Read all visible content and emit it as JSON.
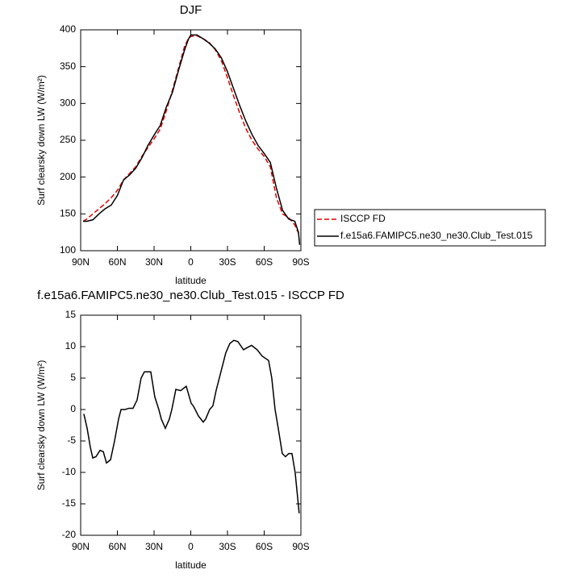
{
  "chart_data": [
    {
      "type": "line",
      "title": "DJF",
      "xlabel": "latitude",
      "ylabel": "Surf clearsky down LW (W/m²)",
      "xlim": [
        90,
        -90
      ],
      "ylim": [
        100,
        400
      ],
      "xticks": [
        {
          "value": 90,
          "label": "90N"
        },
        {
          "value": 60,
          "label": "60N"
        },
        {
          "value": 30,
          "label": "30N"
        },
        0,
        {
          "value": -30,
          "label": "30S"
        },
        {
          "value": -60,
          "label": "60S"
        },
        {
          "value": -90,
          "label": "90S"
        }
      ],
      "yticks": [
        100,
        150,
        200,
        250,
        300,
        350,
        400
      ],
      "legend": "right",
      "series": [
        {
          "name": "ISCCP FD",
          "color": "#e00000",
          "dash": "dashed",
          "x": [
            88,
            85,
            80,
            75,
            70,
            65,
            60,
            55,
            50,
            45,
            40,
            35,
            30,
            25,
            20,
            15,
            10,
            5,
            2,
            0,
            -5,
            -10,
            -15,
            -20,
            -25,
            -30,
            -35,
            -40,
            -45,
            -50,
            -55,
            -60,
            -65,
            -70,
            -75,
            -80,
            -85,
            -88
          ],
          "values": [
            140,
            143,
            150,
            157,
            164,
            172,
            182,
            196,
            205,
            214,
            228,
            240,
            252,
            265,
            290,
            318,
            348,
            378,
            388,
            391,
            392,
            388,
            383,
            373,
            358,
            335,
            310,
            287,
            266,
            250,
            238,
            228,
            214,
            172,
            150,
            145,
            135,
            124
          ]
        },
        {
          "name": "f.e15a6.FAMIPC5.ne30_ne30.Club_Test.015",
          "color": "#000000",
          "dash": "solid",
          "x": [
            88,
            85,
            80,
            75,
            70,
            65,
            60,
            55,
            50,
            45,
            40,
            35,
            30,
            25,
            20,
            15,
            10,
            5,
            2,
            0,
            -5,
            -10,
            -15,
            -20,
            -25,
            -30,
            -35,
            -40,
            -45,
            -50,
            -55,
            -60,
            -65,
            -70,
            -75,
            -80,
            -85,
            -88,
            -89
          ],
          "values": [
            140,
            140,
            142,
            150,
            157,
            162,
            175,
            196,
            203,
            212,
            226,
            243,
            257,
            270,
            295,
            315,
            345,
            373,
            387,
            393,
            393,
            388,
            382,
            374,
            362,
            343,
            320,
            297,
            276,
            258,
            243,
            232,
            220,
            185,
            155,
            143,
            140,
            125,
            108
          ]
        }
      ]
    },
    {
      "type": "line",
      "title": "f.e15a6.FAMIPC5.ne30_ne30.Club_Test.015 - ISCCP FD",
      "xlabel": "latitude",
      "ylabel": "Surf clearsky down LW (W/m²)",
      "xlim": [
        90,
        -90
      ],
      "ylim": [
        -20,
        15
      ],
      "xticks": [
        {
          "value": 90,
          "label": "90N"
        },
        {
          "value": 60,
          "label": "60N"
        },
        {
          "value": 30,
          "label": "30N"
        },
        0,
        {
          "value": -30,
          "label": "30S"
        },
        {
          "value": -60,
          "label": "60S"
        },
        {
          "value": -90,
          "label": "90S"
        }
      ],
      "yticks": [
        -20,
        -15,
        -10,
        -5,
        0,
        5,
        10,
        15
      ],
      "series": [
        {
          "color": "#000000",
          "dash": "solid",
          "x": [
            87.4,
            84.7,
            82.1,
            80.1,
            77.5,
            74.2,
            71.5,
            68.9,
            65.6,
            62.3,
            59.0,
            57.0,
            53.7,
            50.5,
            47.2,
            43.9,
            40.6,
            37.9,
            32.7,
            29.4,
            26.1,
            24.1,
            20.8,
            17.5,
            15.5,
            12.2,
            8.3,
            3.7,
            -0.3,
            -2.3,
            -6.2,
            -10.2,
            -12.2,
            -15.4,
            -18.1,
            -20.7,
            -24,
            -28.6,
            -31.9,
            -35.2,
            -38.5,
            -43.1,
            -45.7,
            -49.7,
            -54.3,
            -58.3,
            -63.6,
            -66.2,
            -68.9,
            -71.5,
            -74.8,
            -77.4,
            -80.1,
            -82.7,
            -85.3,
            -88.6
          ],
          "values": [
            -0.7,
            -3,
            -6,
            -7.7,
            -7.5,
            -6.5,
            -6.7,
            -8.5,
            -8,
            -5,
            -1.5,
            0,
            0,
            0.2,
            0.2,
            1.5,
            5,
            6,
            6,
            2,
            0,
            -1.5,
            -3,
            -1.5,
            0,
            3.2,
            3,
            3.7,
            1,
            0.5,
            -1,
            -2,
            -1.5,
            0,
            0.6,
            3,
            5.5,
            9,
            10.5,
            11,
            10.8,
            9.5,
            9.8,
            10.2,
            9.5,
            8.5,
            7.8,
            5,
            0,
            -3,
            -7,
            -7.5,
            -7,
            -7,
            -10,
            -16.5
          ]
        }
      ]
    }
  ]
}
